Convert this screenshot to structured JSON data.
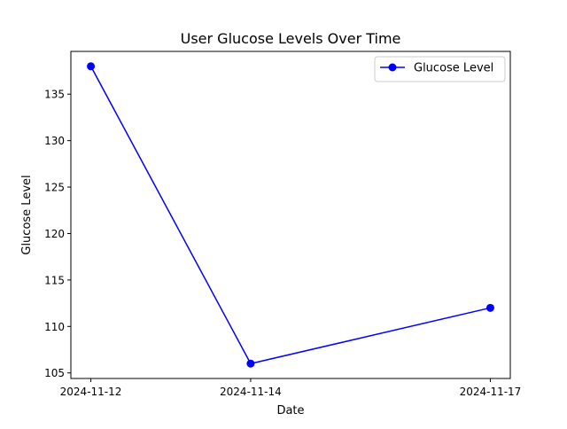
{
  "chart_data": {
    "type": "line",
    "title": "User Glucose Levels Over Time",
    "xlabel": "Date",
    "ylabel": "Glucose Level",
    "x": [
      "2024-11-12",
      "2024-11-14",
      "2024-11-17"
    ],
    "x_ticks": [
      "2024-11-12",
      "2024-11-14",
      "2024-11-17"
    ],
    "y_ticks": [
      105,
      110,
      115,
      120,
      125,
      130,
      135
    ],
    "ylim": [
      104.4,
      139.6
    ],
    "grid": false,
    "legend_position": "top-right",
    "series": [
      {
        "name": "Glucose Level",
        "color": "#0000ff",
        "marker": "circle",
        "values": [
          138,
          106,
          112
        ]
      }
    ]
  }
}
